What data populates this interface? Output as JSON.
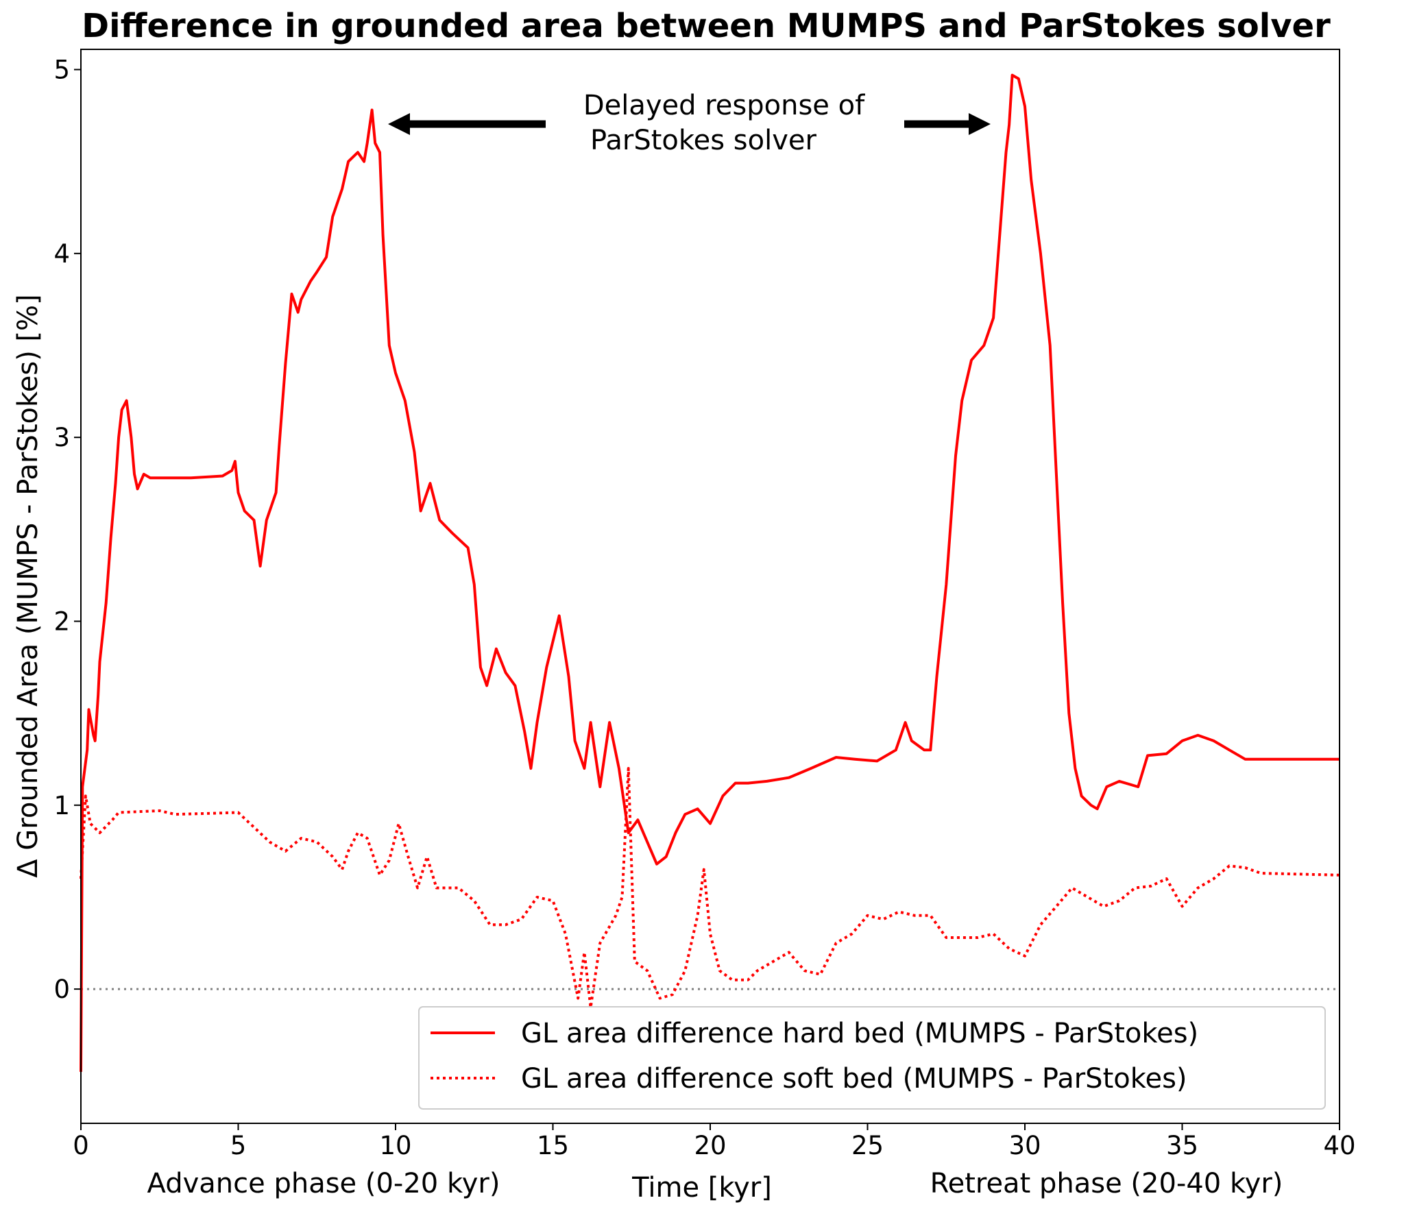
{
  "chart_data": {
    "type": "line",
    "title": "Difference in grounded area between MUMPS and ParStokes solver",
    "xlabel": "Time [kyr]",
    "ylabel": "Δ Grounded Area (MUMPS - ParStokes) [%]",
    "xlim": [
      0,
      40
    ],
    "ylim": [
      -0.73,
      5.11
    ],
    "xticks": [
      0,
      5,
      10,
      15,
      20,
      25,
      30,
      35,
      40
    ],
    "yticks": [
      0,
      1,
      2,
      3,
      4,
      5
    ],
    "grid": false,
    "legend_position": "lower-right",
    "phase_labels": {
      "advance": "Advance phase (0-20 kyr)",
      "retreat": "Retreat phase (20-40 kyr)"
    },
    "annotation": {
      "line1": "Delayed response of",
      "line2": "ParStokes solver"
    },
    "reference_line": {
      "y": 0,
      "color": "#808080",
      "style": "dotted"
    },
    "series": [
      {
        "name": "GL area difference hard bed (MUMPS - ParStokes)",
        "color": "#ff0000",
        "style": "solid",
        "x": [
          0,
          0.05,
          0.2,
          0.25,
          0.4,
          0.45,
          0.55,
          0.6,
          0.8,
          0.95,
          1.1,
          1.2,
          1.3,
          1.45,
          1.6,
          1.7,
          1.8,
          2.0,
          2.2,
          2.5,
          3.5,
          4.5,
          4.8,
          4.9,
          5.0,
          5.2,
          5.5,
          5.7,
          5.9,
          6.2,
          6.3,
          6.5,
          6.7,
          6.9,
          7.0,
          7.3,
          7.5,
          7.8,
          8.0,
          8.3,
          8.5,
          8.8,
          9.0,
          9.1,
          9.25,
          9.35,
          9.5,
          9.6,
          9.8,
          10.0,
          10.3,
          10.6,
          10.8,
          11.1,
          11.4,
          11.8,
          12.3,
          12.5,
          12.7,
          12.9,
          13.2,
          13.5,
          13.8,
          14.1,
          14.3,
          14.5,
          14.8,
          15.2,
          15.5,
          15.7,
          16.0,
          16.2,
          16.5,
          16.8,
          17.1,
          17.4,
          17.7,
          18.0,
          18.3,
          18.6,
          18.9,
          19.2,
          19.6,
          20.0,
          20.4,
          20.8,
          21.2,
          21.8,
          22.5,
          23.2,
          24.0,
          24.6,
          25.3,
          25.9,
          26.2,
          26.4,
          26.8,
          27.0,
          27.2,
          27.5,
          27.8,
          28.0,
          28.3,
          28.7,
          29.0,
          29.2,
          29.4,
          29.5,
          29.6,
          29.8,
          30.0,
          30.2,
          30.5,
          30.8,
          31.0,
          31.2,
          31.4,
          31.6,
          31.8,
          32.1,
          32.3,
          32.6,
          33.0,
          33.6,
          33.9,
          34.5,
          35.0,
          35.5,
          36.0,
          36.5,
          37.0,
          37.5,
          40
        ],
        "y": [
          -0.45,
          1.1,
          1.3,
          1.52,
          1.38,
          1.35,
          1.6,
          1.78,
          2.1,
          2.45,
          2.75,
          3.0,
          3.15,
          3.2,
          3.0,
          2.8,
          2.72,
          2.8,
          2.78,
          2.78,
          2.78,
          2.79,
          2.82,
          2.87,
          2.7,
          2.6,
          2.55,
          2.3,
          2.55,
          2.7,
          2.95,
          3.4,
          3.78,
          3.68,
          3.75,
          3.85,
          3.9,
          3.98,
          4.2,
          4.35,
          4.5,
          4.55,
          4.5,
          4.6,
          4.78,
          4.6,
          4.55,
          4.1,
          3.5,
          3.35,
          3.2,
          2.92,
          2.6,
          2.75,
          2.55,
          2.48,
          2.4,
          2.2,
          1.75,
          1.65,
          1.85,
          1.72,
          1.65,
          1.4,
          1.2,
          1.45,
          1.75,
          2.03,
          1.7,
          1.35,
          1.2,
          1.45,
          1.1,
          1.45,
          1.2,
          0.85,
          0.92,
          0.8,
          0.68,
          0.72,
          0.85,
          0.95,
          0.98,
          0.9,
          1.05,
          1.12,
          1.12,
          1.13,
          1.15,
          1.2,
          1.26,
          1.25,
          1.24,
          1.3,
          1.45,
          1.35,
          1.3,
          1.3,
          1.7,
          2.2,
          2.9,
          3.2,
          3.42,
          3.5,
          3.65,
          4.1,
          4.55,
          4.7,
          4.97,
          4.95,
          4.8,
          4.4,
          4.0,
          3.5,
          2.8,
          2.1,
          1.5,
          1.2,
          1.05,
          1.0,
          0.98,
          1.1,
          1.13,
          1.1,
          1.27,
          1.28,
          1.35,
          1.38,
          1.35,
          1.3,
          1.25,
          1.25,
          1.25
        ]
      },
      {
        "name": "GL area difference soft bed (MUMPS - ParStokes)",
        "color": "#ff0000",
        "style": "dotted",
        "x": [
          0,
          0.15,
          0.3,
          0.6,
          1.0,
          1.2,
          2.5,
          3.0,
          5.0,
          5.5,
          6.0,
          6.5,
          7.0,
          7.5,
          8.0,
          8.3,
          8.5,
          8.8,
          9.1,
          9.5,
          9.8,
          10.1,
          10.4,
          10.7,
          11.0,
          11.3,
          12.0,
          12.5,
          13.0,
          13.5,
          14.0,
          14.5,
          15.0,
          15.4,
          15.8,
          16.0,
          16.2,
          16.5,
          17.0,
          17.2,
          17.4,
          17.6,
          18.0,
          18.4,
          18.8,
          19.2,
          19.6,
          19.8,
          20.0,
          20.3,
          20.7,
          21.2,
          21.5,
          22.0,
          22.5,
          23.0,
          23.5,
          24.0,
          24.5,
          25.0,
          25.5,
          26.0,
          26.5,
          27.0,
          27.5,
          28.5,
          29.0,
          29.5,
          30.0,
          30.5,
          31.0,
          31.5,
          32.0,
          32.5,
          33.0,
          33.5,
          34.0,
          34.5,
          35.0,
          35.5,
          36.0,
          36.5,
          37.0,
          37.5,
          40
        ],
        "y": [
          0.6,
          1.05,
          0.9,
          0.85,
          0.92,
          0.96,
          0.97,
          0.95,
          0.96,
          0.88,
          0.8,
          0.75,
          0.82,
          0.8,
          0.72,
          0.65,
          0.75,
          0.85,
          0.82,
          0.62,
          0.7,
          0.9,
          0.72,
          0.55,
          0.72,
          0.55,
          0.55,
          0.48,
          0.35,
          0.35,
          0.38,
          0.5,
          0.48,
          0.3,
          -0.05,
          0.2,
          -0.1,
          0.25,
          0.4,
          0.5,
          1.2,
          0.15,
          0.1,
          -0.05,
          -0.03,
          0.1,
          0.4,
          0.65,
          0.3,
          0.1,
          0.05,
          0.05,
          0.1,
          0.15,
          0.2,
          0.1,
          0.08,
          0.25,
          0.3,
          0.4,
          0.38,
          0.42,
          0.4,
          0.4,
          0.28,
          0.28,
          0.3,
          0.22,
          0.18,
          0.35,
          0.45,
          0.55,
          0.5,
          0.45,
          0.48,
          0.55,
          0.56,
          0.6,
          0.45,
          0.55,
          0.6,
          0.67,
          0.66,
          0.63,
          0.62
        ]
      }
    ]
  }
}
